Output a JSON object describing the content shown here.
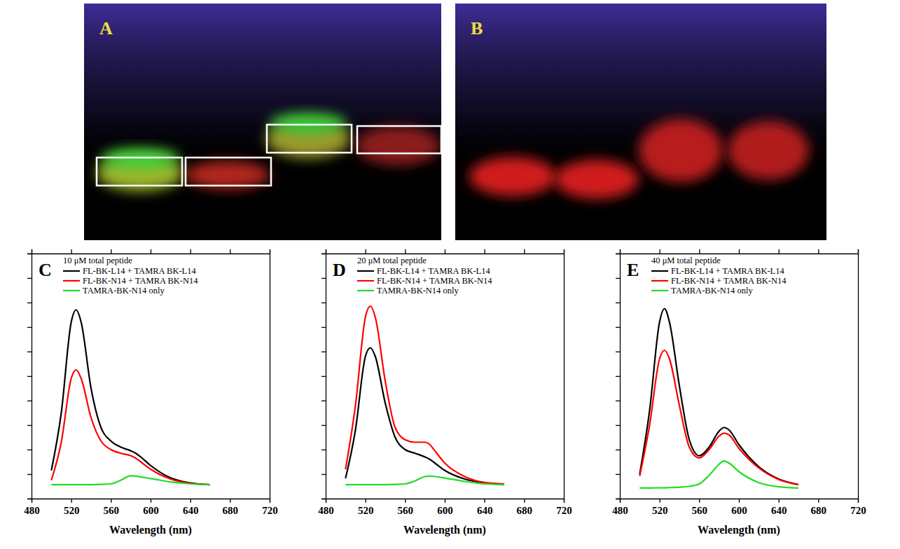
{
  "gels": [
    {
      "label": "A"
    },
    {
      "label": "B"
    }
  ],
  "chart_data": [
    {
      "type": "line",
      "title": "10 μM total peptide",
      "annotations": [
        "C"
      ],
      "xlabel": "Wavelength (nm)",
      "x": [
        500,
        510,
        520,
        525,
        530,
        540,
        550,
        560,
        570,
        580,
        585,
        590,
        600,
        620,
        640,
        660
      ],
      "xlim": [
        480,
        720
      ],
      "xticks": [
        480,
        520,
        560,
        600,
        640,
        680,
        720
      ],
      "ylim": [
        0,
        10
      ],
      "yticks": [
        0,
        1,
        2,
        3,
        4,
        5,
        6,
        7,
        8,
        9,
        10
      ],
      "tick_labels": "x",
      "legend": "upper left",
      "series": [
        {
          "name": "FL-BK-L14 + TAMRA BK-L14",
          "color": "#000000",
          "values": [
            1.15,
            3.5,
            7.2,
            7.7,
            7.2,
            4.5,
            2.9,
            2.35,
            2.1,
            1.95,
            1.85,
            1.7,
            1.35,
            0.85,
            0.64,
            0.57
          ]
        },
        {
          "name": "FL-BK-N14 + TAMRA BK-N14",
          "color": "#ff0000",
          "values": [
            0.75,
            2.3,
            4.9,
            5.25,
            4.9,
            3.3,
            2.35,
            2.0,
            1.85,
            1.75,
            1.65,
            1.5,
            1.2,
            0.8,
            0.62,
            0.57
          ]
        },
        {
          "name": "TAMRA-BK-N14 only",
          "color": "#22dd22",
          "values": [
            0.57,
            0.57,
            0.57,
            0.57,
            0.57,
            0.57,
            0.58,
            0.6,
            0.75,
            0.93,
            0.92,
            0.88,
            0.82,
            0.68,
            0.6,
            0.57
          ]
        }
      ]
    },
    {
      "type": "line",
      "title": "20 μM total peptide",
      "annotations": [
        "D"
      ],
      "xlabel": "Wavelength (nm)",
      "x": [
        500,
        510,
        520,
        525,
        530,
        540,
        550,
        560,
        570,
        580,
        585,
        590,
        600,
        620,
        640,
        660
      ],
      "xlim": [
        480,
        720
      ],
      "xticks": [
        480,
        520,
        560,
        600,
        640,
        680,
        720
      ],
      "ylim": [
        0,
        10
      ],
      "yticks": [
        0,
        1,
        2,
        3,
        4,
        5,
        6,
        7,
        8,
        9,
        10
      ],
      "tick_labels": "x",
      "legend": "upper left",
      "series": [
        {
          "name": "FL-BK-L14 + TAMRA BK-L14",
          "color": "#000000",
          "values": [
            0.82,
            2.8,
            5.8,
            6.15,
            5.8,
            3.9,
            2.5,
            2.0,
            1.85,
            1.7,
            1.6,
            1.45,
            1.15,
            0.8,
            0.64,
            0.57
          ]
        },
        {
          "name": "FL-BK-N14 + TAMRA BK-N14",
          "color": "#ff0000",
          "values": [
            1.2,
            3.8,
            7.4,
            7.85,
            7.4,
            4.8,
            2.9,
            2.4,
            2.3,
            2.3,
            2.2,
            1.95,
            1.45,
            0.9,
            0.66,
            0.6
          ]
        },
        {
          "name": "TAMRA-BK-N14 only",
          "color": "#22dd22",
          "values": [
            0.57,
            0.57,
            0.57,
            0.57,
            0.57,
            0.57,
            0.58,
            0.6,
            0.72,
            0.9,
            0.92,
            0.9,
            0.84,
            0.7,
            0.6,
            0.57
          ]
        }
      ]
    },
    {
      "type": "line",
      "title": "40 μM total peptide",
      "annotations": [
        "E"
      ],
      "xlabel": "Wavelength (nm)",
      "x": [
        500,
        510,
        520,
        525,
        530,
        540,
        550,
        560,
        570,
        580,
        585,
        590,
        600,
        620,
        640,
        660
      ],
      "xlim": [
        480,
        720
      ],
      "xticks": [
        480,
        520,
        560,
        600,
        640,
        680,
        720
      ],
      "ylim": [
        0,
        10
      ],
      "yticks": [
        0,
        1,
        2,
        3,
        4,
        5,
        6,
        7,
        8,
        9,
        10
      ],
      "tick_labels": "x",
      "legend": "upper left",
      "series": [
        {
          "name": "FL-BK-L14 + TAMRA BK-L14",
          "color": "#000000",
          "values": [
            1.0,
            3.6,
            7.2,
            7.75,
            7.2,
            4.6,
            2.4,
            1.75,
            2.1,
            2.75,
            2.9,
            2.8,
            2.2,
            1.3,
            0.8,
            0.57
          ]
        },
        {
          "name": "FL-BK-N14 + TAMRA BK-N14",
          "color": "#ff0000",
          "values": [
            0.92,
            3.0,
            5.7,
            6.05,
            5.7,
            3.8,
            2.1,
            1.66,
            2.0,
            2.55,
            2.67,
            2.6,
            2.05,
            1.25,
            0.78,
            0.57
          ]
        },
        {
          "name": "TAMRA-BK-N14 only",
          "color": "#22dd22",
          "values": [
            0.43,
            0.43,
            0.44,
            0.44,
            0.45,
            0.46,
            0.5,
            0.6,
            0.95,
            1.4,
            1.54,
            1.45,
            1.1,
            0.65,
            0.48,
            0.43
          ]
        }
      ]
    }
  ]
}
